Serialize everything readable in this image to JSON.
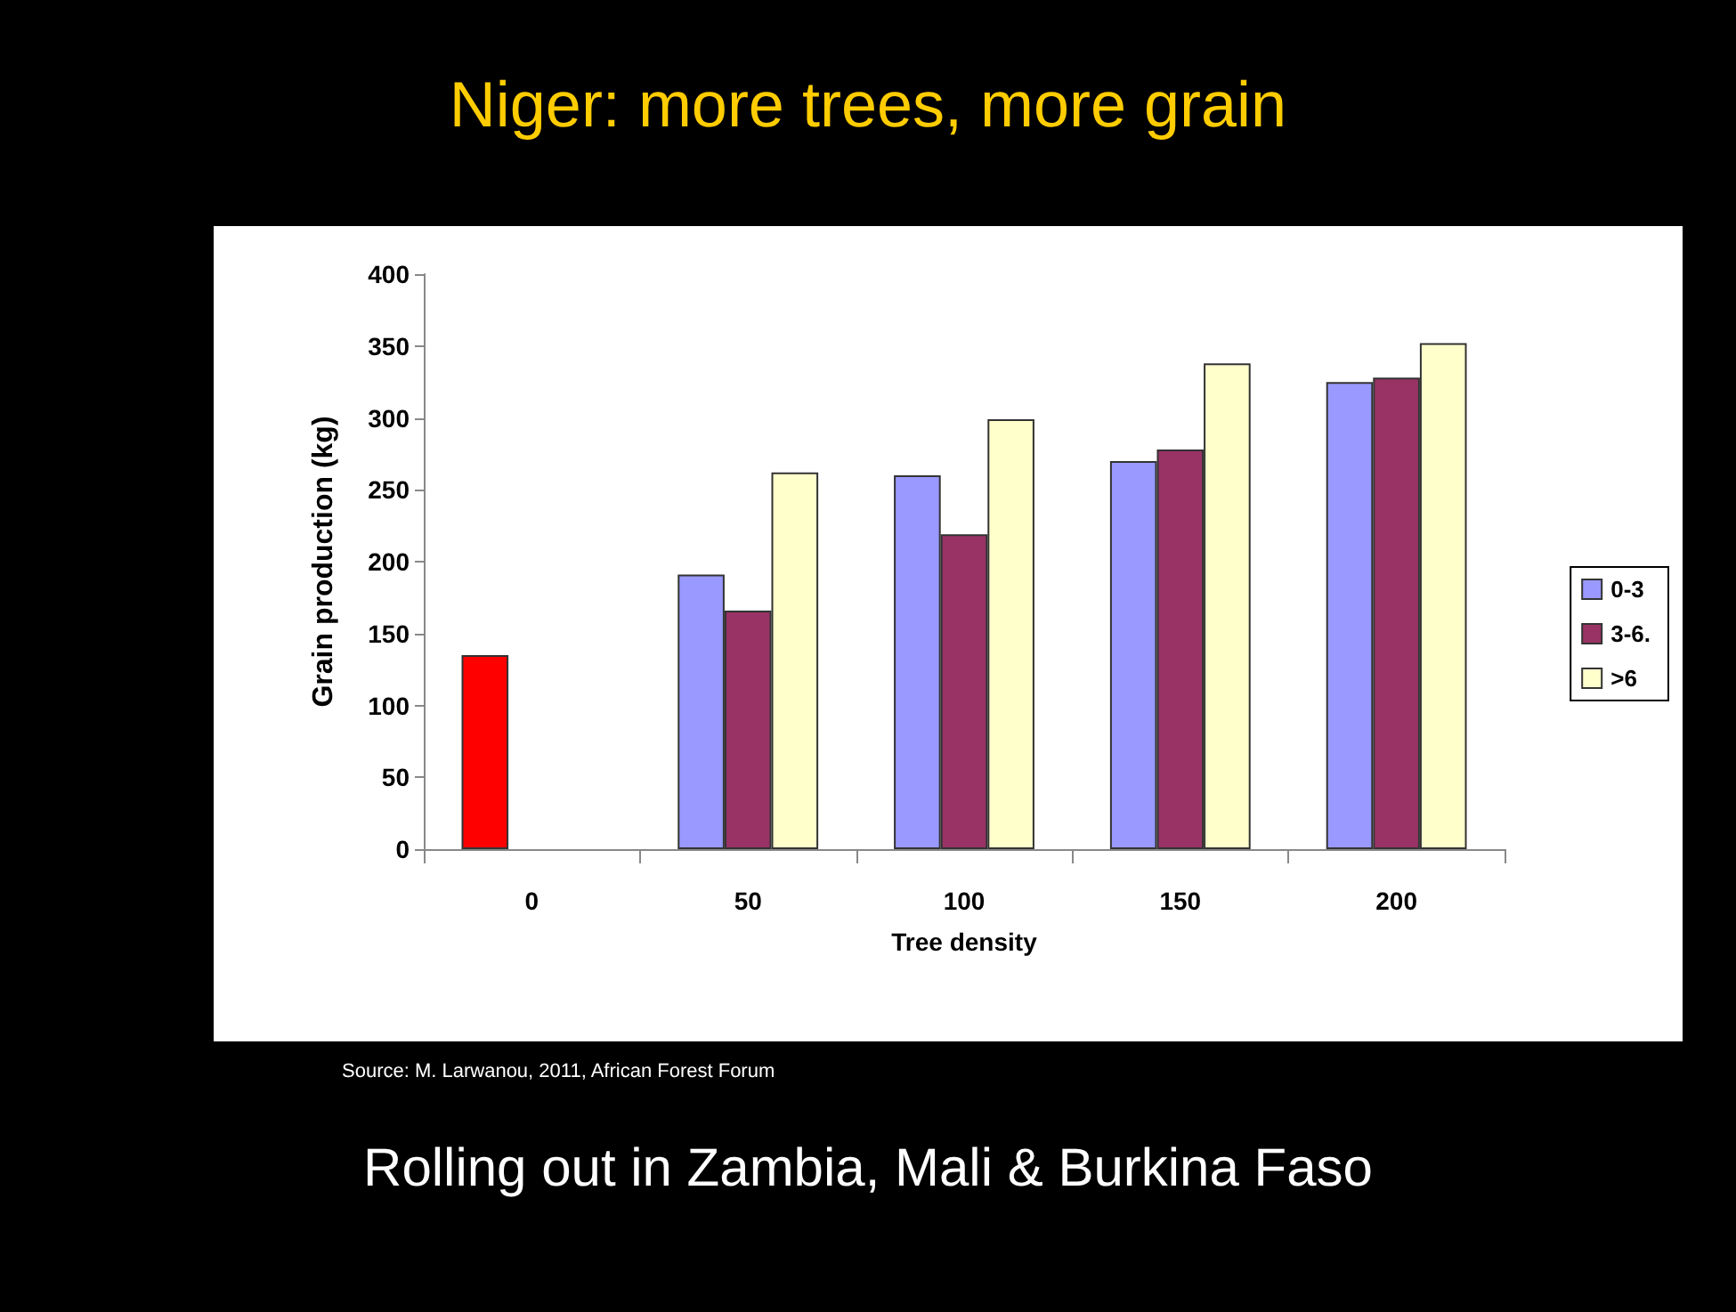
{
  "chart_data": {
    "type": "bar",
    "title": "Niger: more trees, more grain",
    "xlabel": "Tree density",
    "ylabel": "Grain production (kg)",
    "categories": [
      "0",
      "50",
      "100",
      "150",
      "200"
    ],
    "series": [
      {
        "name": "0-3",
        "color": "#9999ff",
        "colors": [
          "#ff0000",
          "#9999ff",
          "#9999ff",
          "#9999ff",
          "#9999ff"
        ],
        "values": [
          135,
          191,
          260,
          270,
          325
        ]
      },
      {
        "name": "3-6.",
        "color": "#993366",
        "values": [
          null,
          166,
          219,
          278,
          328
        ]
      },
      {
        "name": ">6",
        "color": "#ffffcc",
        "values": [
          null,
          262,
          299,
          338,
          352
        ]
      }
    ],
    "ylim": [
      0,
      400
    ],
    "yticks": [
      0,
      50,
      100,
      150,
      200,
      250,
      300,
      350,
      400
    ],
    "grid": false,
    "legend": "right",
    "annotations": [
      "Source:  M. Larwanou, 2011, African Forest Forum",
      "Rolling out in Zambia, Mali & Burkina Faso"
    ]
  }
}
